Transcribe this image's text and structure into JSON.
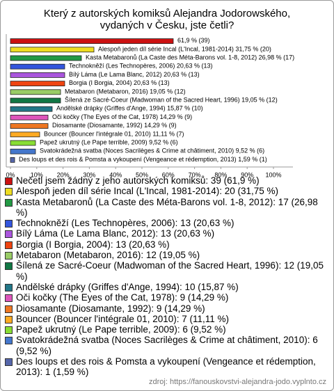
{
  "chart_data": {
    "type": "bar",
    "orientation": "horizontal",
    "title": "Který z autorských komiksů Alejandra Jodorowského, vydaných v Česku, jste četli?",
    "categories": [
      null,
      "Alespoň jeden díl série Incal (L'Incal, 1981-2014)",
      "Kasta Metabaronů (La Caste des Méta-Barons vol. 1-8, 2012)",
      "Technokněží (Les Technopères, 2006)",
      "Bílý Láma (Le Lama Blanc, 2012)",
      "Borgia (I Borgia, 2004)",
      "Metabaron (Metabaron, 2016)",
      "Šílená ze Sacré-Coeur (Madwoman of the Sacred Heart, 1996)",
      "Andělské drápky (Griffes d'Ange, 1994)",
      "Oči kočky (The Eyes of the Cat, 1978)",
      "Diosamante (Diosamante, 1992)",
      "Bouncer (Bouncer l'intégrale 01, 2010)",
      "Papež ukrutný (Le Pape terrible, 2009)",
      "Svatokrádežná svatba (Noces Sacrilèges & Crime at châtiment, 2010)",
      "Des loups et des rois & Pomsta a vykoupení (Vengeance et rédemption, 2013)"
    ],
    "values": [
      61.9,
      31.75,
      26.98,
      20.63,
      20.63,
      20.63,
      19.05,
      19.05,
      15.87,
      14.29,
      14.29,
      11.11,
      9.52,
      9.52,
      1.59
    ],
    "value_labels": [
      "61,9 % (39)",
      "31,75 % (20)",
      "26,98 % (17)",
      "20,63 % (13)",
      "20,63 % (13)",
      "20,63 % (13)",
      "19,05 % (12)",
      "19,05 % (12)",
      "15,87 % (10)",
      "14,29 % (9)",
      "14,29 % (9)",
      "11,11 % (7)",
      "9,52 % (6)",
      "9,52 % (6)",
      "1,59 % (1)"
    ],
    "colors": [
      "#cc1111",
      "#eedd22",
      "#229944",
      "#3355dd",
      "#aa55dd",
      "#ee4411",
      "#99cc66",
      "#117744",
      "#227788",
      "#dd55bb",
      "#ee7722",
      "#ffaa22",
      "#88dd33",
      "#4477cc",
      "#5566aa"
    ],
    "legend": [
      "Nečetl jsem žádný z jeho autorských komiksů: 39 (61,9 %)",
      "Alespoň jeden díl série Incal (L'Incal, 1981-2014): 20 (31,75 %)",
      "Kasta Metabaronů (La Caste des Méta-Barons vol. 1-8, 2012): 17 (26,98 %)",
      "Technokněží (Les Technopères, 2006): 13 (20,63 %)",
      "Bílý Láma (Le Lama Blanc, 2012): 13 (20,63 %)",
      "Borgia (I Borgia, 2004): 13 (20,63 %)",
      "Metabaron (Metabaron, 2016): 12 (19,05 %)",
      "Šílená ze Sacré-Coeur (Madwoman of the Sacred Heart, 1996): 12 (19,05 %)",
      "Andělské drápky (Griffes d'Ange, 1994): 10 (15,87 %)",
      "Oči kočky (The Eyes of the Cat, 1978): 9 (14,29 %)",
      "Diosamante (Diosamante, 1992): 9 (14,29 %)",
      "Bouncer (Bouncer l'intégrale 01, 2010): 7 (11,11 %)",
      "Papež ukrutný (Le Pape terrible, 2009): 6 (9,52 %)",
      "Svatokrádežná svatba (Noces Sacrilèges & Crime at châtiment, 2010): 6 (9,52 %)",
      "Des loups et des rois & Pomsta a vykoupení (Vengeance et rédemption, 2013): 1 (1,59 %)"
    ],
    "xlim": [
      0,
      100
    ],
    "xticks": [
      {
        "value": 0,
        "label": "0%"
      },
      {
        "value": 10,
        "label": "10%"
      },
      {
        "value": 20,
        "label": "20%"
      },
      {
        "value": 30,
        "label": "30%"
      },
      {
        "value": 40,
        "label": "40%"
      },
      {
        "value": 50,
        "label": "50%"
      },
      {
        "value": 60,
        "label": "60%"
      },
      {
        "value": 70,
        "label": "70%"
      },
      {
        "value": 80,
        "label": "80%"
      },
      {
        "value": 90,
        "label": "90%"
      },
      {
        "value": 100,
        "label": "100%"
      }
    ],
    "source": "zdroj: https://fanouskovstvi-alejandra-jodo.vyplnto.cz"
  }
}
